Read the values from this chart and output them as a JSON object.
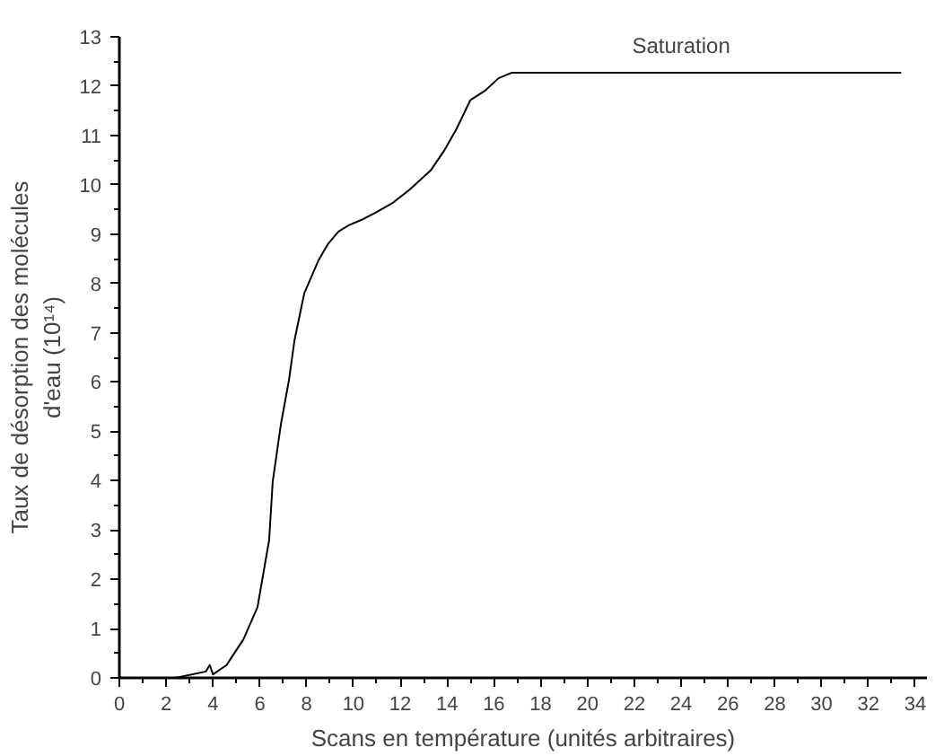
{
  "chart_data": {
    "type": "line",
    "xlabel": "Scans en température (unités arbitraires)",
    "ylabel": "Taux de désorption des molécules\nd'eau (10¹⁴)",
    "x": [
      0,
      2.4,
      3.7,
      3.86,
      4.0,
      4.58,
      5.3,
      5.9,
      6.4,
      6.55,
      6.9,
      7.25,
      7.48,
      7.9,
      8.5,
      8.9,
      9.36,
      9.8,
      10.4,
      10.96,
      11.7,
      12.4,
      13.3,
      13.86,
      14.4,
      15.0,
      15.6,
      16.2,
      16.75,
      17.9,
      33.4
    ],
    "series": [
      {
        "color": "#000000",
        "values": [
          0,
          0,
          0.13,
          0.26,
          0.07,
          0.26,
          0.78,
          1.43,
          2.8,
          3.97,
          5.14,
          6.05,
          6.84,
          7.8,
          8.46,
          8.79,
          9.05,
          9.18,
          9.3,
          9.44,
          9.64,
          9.9,
          10.29,
          10.68,
          11.13,
          11.72,
          11.9,
          12.16,
          12.27,
          12.27,
          12.27
        ]
      }
    ],
    "xlim": [
      0,
      34.5
    ],
    "ylim": [
      0,
      13
    ],
    "xticks": [
      0,
      2,
      4,
      6,
      8,
      10,
      12,
      14,
      16,
      18,
      20,
      22,
      24,
      26,
      28,
      30,
      32,
      34
    ],
    "yticks": [
      0,
      1,
      2,
      3,
      4,
      5,
      6,
      7,
      8,
      9,
      10,
      11,
      12,
      13
    ],
    "annotations": [
      {
        "text": "Saturation",
        "x": 24,
        "y": 12.27
      }
    ],
    "grid": false,
    "marker": "none",
    "line_style": "solid"
  }
}
